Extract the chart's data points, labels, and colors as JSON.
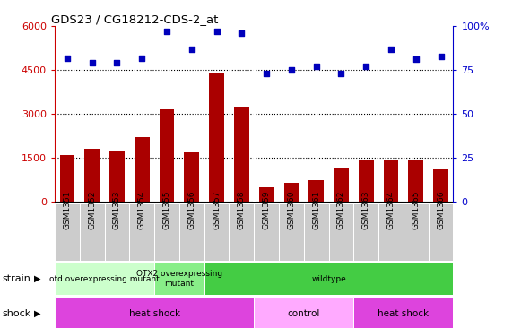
{
  "title": "GDS23 / CG18212-CDS-2_at",
  "samples": [
    "GSM1351",
    "GSM1352",
    "GSM1353",
    "GSM1354",
    "GSM1355",
    "GSM1356",
    "GSM1357",
    "GSM1358",
    "GSM1359",
    "GSM1360",
    "GSM1361",
    "GSM1362",
    "GSM1363",
    "GSM1364",
    "GSM1365",
    "GSM1366"
  ],
  "counts": [
    1600,
    1800,
    1750,
    2200,
    3150,
    1700,
    4400,
    3250,
    500,
    650,
    750,
    1150,
    1450,
    1450,
    1450,
    1100
  ],
  "percentiles": [
    82,
    79,
    79,
    82,
    97,
    87,
    97,
    96,
    73,
    75,
    77,
    73,
    77,
    87,
    81,
    83
  ],
  "ylim_left": [
    0,
    6000
  ],
  "ylim_right": [
    0,
    100
  ],
  "yticks_left": [
    0,
    1500,
    3000,
    4500,
    6000
  ],
  "yticks_right": [
    0,
    25,
    50,
    75,
    100
  ],
  "strain_groups": [
    {
      "label": "otd overexpressing mutant",
      "start": 0,
      "end": 4,
      "color": "#ccffcc"
    },
    {
      "label": "OTX2 overexpressing\nmutant",
      "start": 4,
      "end": 6,
      "color": "#88ee88"
    },
    {
      "label": "wildtype",
      "start": 6,
      "end": 16,
      "color": "#44cc44"
    }
  ],
  "shock_groups": [
    {
      "label": "heat shock",
      "start": 0,
      "end": 8,
      "color": "#dd44dd"
    },
    {
      "label": "control",
      "start": 8,
      "end": 12,
      "color": "#ffaaff"
    },
    {
      "label": "heat shock",
      "start": 12,
      "end": 16,
      "color": "#dd44dd"
    }
  ],
  "bar_color": "#aa0000",
  "dot_color": "#0000bb",
  "left_axis_color": "#cc0000",
  "right_axis_color": "#0000cc",
  "bg_color": "#ffffff",
  "grid_color": "black",
  "xtick_bg": "#cccccc"
}
